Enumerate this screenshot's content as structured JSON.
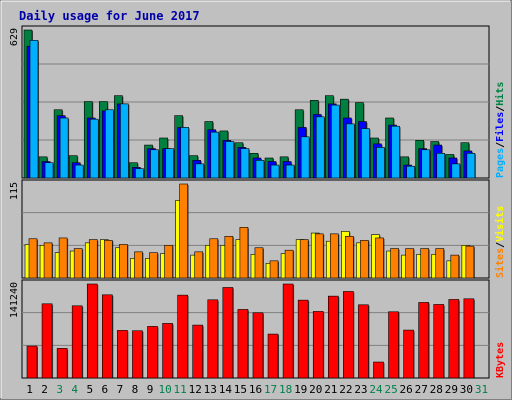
{
  "chart_data": {
    "type": "bar",
    "title": "Daily usage for June 2017",
    "categories": [
      "1",
      "2",
      "3",
      "4",
      "5",
      "6",
      "7",
      "8",
      "9",
      "10",
      "11",
      "12",
      "13",
      "14",
      "15",
      "16",
      "17",
      "18",
      "19",
      "20",
      "21",
      "22",
      "23",
      "24",
      "25",
      "26",
      "27",
      "28",
      "29",
      "30",
      "31"
    ],
    "weekend_days": [
      "3",
      "4",
      "10",
      "11",
      "17",
      "18",
      "24",
      "25",
      "31"
    ],
    "panels": [
      {
        "id": "hits",
        "max_label": "629",
        "ymax": 629,
        "legend": [
          "Pages",
          "Files",
          "Hits"
        ],
        "series": [
          {
            "name": "Hits",
            "color": "#008040",
            "values": [
              629,
              90,
              290,
              95,
              325,
              325,
              350,
              65,
              140,
              170,
              265,
              95,
              240,
              200,
              150,
              105,
              85,
              90,
              290,
              330,
              350,
              335,
              320,
              170,
              255,
              90,
              160,
              155,
              100,
              150,
              0
            ]
          },
          {
            "name": "Files",
            "color": "#0000ff",
            "values": [
              560,
              70,
              265,
              65,
              255,
              285,
              315,
              45,
              125,
              125,
              215,
              75,
              205,
              160,
              130,
              85,
              70,
              70,
              215,
              270,
              315,
              255,
              240,
              145,
              225,
              55,
              125,
              140,
              85,
              115,
              0
            ]
          },
          {
            "name": "Pages",
            "color": "#00b0ff",
            "values": [
              585,
              65,
              255,
              55,
              250,
              290,
              315,
              40,
              120,
              125,
              215,
              60,
              195,
              155,
              125,
              75,
              55,
              55,
              175,
              260,
              310,
              230,
              210,
              130,
              220,
              50,
              120,
              105,
              60,
              105,
              0
            ]
          }
        ]
      },
      {
        "id": "visits",
        "max_label": "115",
        "ymax": 115,
        "legend": [
          "Sites",
          "Visits"
        ],
        "series": [
          {
            "name": "Visits",
            "color": "#ffff00",
            "values": [
              41,
              40,
              31,
              33,
              43,
              47,
              37,
              24,
              24,
              30,
              95,
              28,
              40,
              40,
              47,
              29,
              18,
              30,
              47,
              55,
              45,
              57,
              43,
              53,
              33,
              28,
              29,
              29,
              21,
              40,
              0
            ]
          },
          {
            "name": "Sites",
            "color": "#ff8000",
            "values": [
              48,
              43,
              49,
              36,
              47,
              46,
              41,
              32,
              31,
              40,
              115,
              32,
              48,
              51,
              62,
              37,
              21,
              34,
              47,
              54,
              54,
              51,
              46,
              49,
              36,
              36,
              36,
              36,
              28,
              39,
              0
            ]
          }
        ]
      },
      {
        "id": "kbytes",
        "max_label": "141240",
        "ymax": 141240,
        "legend": [
          "KBytes"
        ],
        "series": [
          {
            "name": "KBytes",
            "color": "#ff0000",
            "values": [
              48000,
              111500,
              44500,
              108500,
              141240,
              125000,
              71500,
              71000,
              77500,
              82000,
              124500,
              79500,
              117500,
              136000,
              103000,
              98000,
              66000,
              141240,
              117000,
              100000,
              123000,
              130000,
              110000,
              24000,
              99500,
              72000,
              113500,
              110500,
              118000,
              119000,
              0
            ]
          }
        ]
      }
    ]
  }
}
